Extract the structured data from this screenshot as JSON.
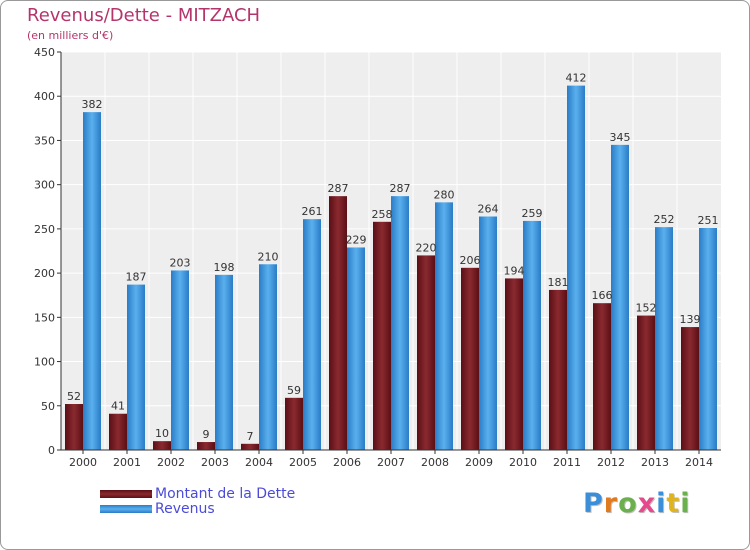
{
  "title": "Revenus/Dette - MITZACH",
  "subtitle": "(en milliers d'€)",
  "colors": {
    "debt": "#7a1e24",
    "revenue": "#3a98e0",
    "title": "#b4346c",
    "legend_text": "#4b4bd8"
  },
  "logo": {
    "text": "Proxiti",
    "letter_colors": [
      "#3a8fd8",
      "#e07a1e",
      "#6ab04c",
      "#e64a8c",
      "#3a8fd8",
      "#e0b41e",
      "#6ab04c"
    ]
  },
  "chart_data": {
    "type": "bar",
    "categories": [
      "2000",
      "2001",
      "2002",
      "2003",
      "2004",
      "2005",
      "2006",
      "2007",
      "2008",
      "2009",
      "2010",
      "2011",
      "2012",
      "2013",
      "2014"
    ],
    "series": [
      {
        "name": "Montant de la Dette",
        "color": "#7a1e24",
        "values": [
          52,
          41,
          10,
          9,
          7,
          59,
          287,
          258,
          220,
          206,
          194,
          181,
          166,
          152,
          139
        ]
      },
      {
        "name": "Revenus",
        "color": "#3a98e0",
        "values": [
          382,
          187,
          203,
          198,
          210,
          261,
          229,
          287,
          280,
          264,
          259,
          412,
          345,
          252,
          251
        ]
      }
    ],
    "ylim": [
      0,
      450
    ],
    "yticks": [
      0,
      50,
      100,
      150,
      200,
      250,
      300,
      350,
      400,
      450
    ],
    "grid": true,
    "legend": "bottom-left"
  }
}
